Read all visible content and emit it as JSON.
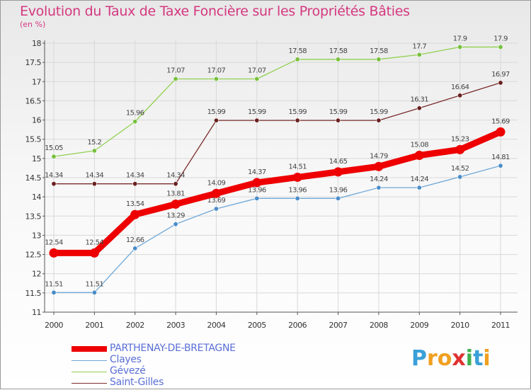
{
  "title": "Evolution du Taux de Taxe Foncière sur les Propriétés Bâties",
  "subtitle": "(en %)",
  "chart_data": {
    "type": "line",
    "title": "Evolution du Taux de Taxe Foncière sur les Propriétés Bâties",
    "ylabel": "(en %)",
    "xlabel": "",
    "ylim": [
      11,
      18
    ],
    "yticks": [
      "11",
      "11.5",
      "12",
      "12.5",
      "13",
      "13.5",
      "14",
      "14.5",
      "15",
      "15.5",
      "16",
      "16.5",
      "17",
      "17.5",
      "18"
    ],
    "x": [
      "2000",
      "2001",
      "2002",
      "2003",
      "2004",
      "2005",
      "2006",
      "2007",
      "2008",
      "2009",
      "2010",
      "2011"
    ],
    "series": [
      {
        "name": "Gévezé",
        "color": "#90d050",
        "marker": "#77c03c",
        "values": [
          15.05,
          15.2,
          15.96,
          17.07,
          17.07,
          17.07,
          17.58,
          17.58,
          17.58,
          17.7,
          17.9,
          17.9
        ],
        "labels": [
          "15.05",
          "15.2",
          "15.96",
          "17.07",
          "17.07",
          "17.07",
          "17.58",
          "17.58",
          "17.58",
          "17.7",
          "17.9",
          "17.9"
        ]
      },
      {
        "name": "Saint-Gilles",
        "color": "#7a2c2c",
        "marker": "#6a2020",
        "values": [
          14.34,
          14.34,
          14.34,
          14.34,
          15.99,
          15.99,
          15.99,
          15.99,
          15.99,
          16.31,
          16.64,
          16.97
        ],
        "labels": [
          "14.34",
          "14.34",
          "14.34",
          "14.34",
          "15.99",
          "15.99",
          "15.99",
          "15.99",
          "15.99",
          "16.31",
          "16.64",
          "16.97"
        ]
      },
      {
        "name": "Clayes",
        "color": "#6fa8d8",
        "marker": "#4a8cc8",
        "values": [
          11.51,
          11.51,
          12.66,
          13.29,
          13.69,
          13.96,
          13.96,
          13.96,
          14.24,
          14.24,
          14.52,
          14.81
        ],
        "labels": [
          "11.51",
          "11.51",
          "12.66",
          "13.29",
          "13.69",
          "13.96",
          "13.96",
          "13.96",
          "14.24",
          "14.24",
          "14.52",
          "14.81"
        ]
      },
      {
        "name": "PARTHENAY-DE-BRETAGNE",
        "color": "#ee0000",
        "marker": "#ee0000",
        "values": [
          12.54,
          12.54,
          13.54,
          13.81,
          14.09,
          14.37,
          14.51,
          14.65,
          14.79,
          15.08,
          15.23,
          15.69
        ],
        "labels": [
          "12.54",
          "12.54",
          "13.54",
          "13.81",
          "14.09",
          "14.37",
          "14.51",
          "14.65",
          "14.79",
          "15.08",
          "15.23",
          "15.69"
        ]
      }
    ],
    "legend": [
      "PARTHENAY-DE-BRETAGNE",
      "Clayes",
      "Gévezé",
      "Saint-Gilles"
    ],
    "legend_position": "bottom-left"
  },
  "legend_colors": {
    "PARTHENAY-DE-BRETAGNE": "#ee0000",
    "Clayes": "#6fa8d8",
    "Gévezé": "#90d050",
    "Saint-Gilles": "#7a2c2c"
  },
  "logo": {
    "text": "Proxiti",
    "letters": [
      "P",
      "r",
      "o",
      "x",
      "i",
      "t",
      "i"
    ],
    "colors": [
      "#3aa0d8",
      "#f0a020",
      "#f0a020",
      "#e03030",
      "#40b050",
      "#3aa0d8",
      "#f0a020"
    ]
  }
}
